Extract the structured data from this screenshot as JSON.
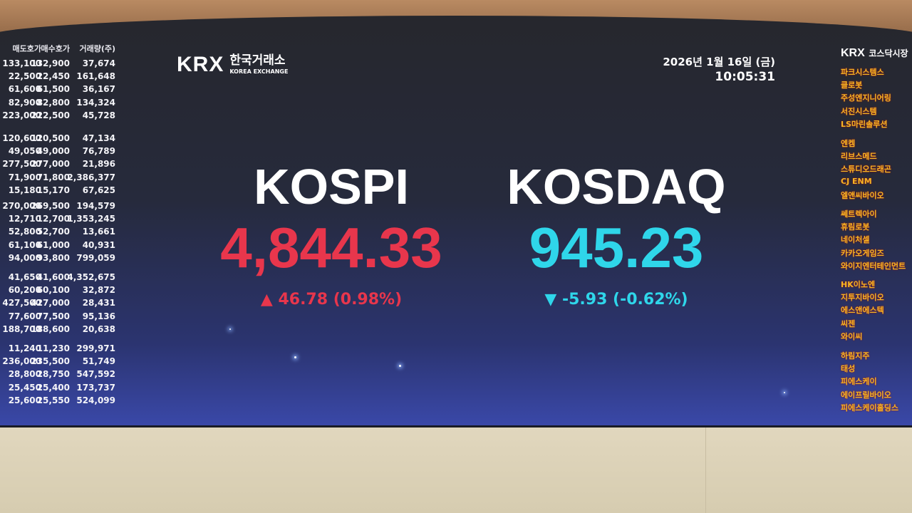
{
  "left_table": {
    "headers": [
      "매도호가",
      "매수호가",
      "거래량(주)"
    ],
    "groups": [
      [
        [
          "133,100",
          "132,900",
          "37,674"
        ],
        [
          "22,500",
          "22,450",
          "161,648"
        ],
        [
          "61,600",
          "61,500",
          "36,167"
        ],
        [
          "82,900",
          "82,800",
          "134,324"
        ],
        [
          "223,000",
          "222,500",
          "45,728"
        ]
      ],
      [
        [
          "120,600",
          "120,500",
          "47,134"
        ],
        [
          "49,050",
          "49,000",
          "76,789"
        ],
        [
          "277,500",
          "277,000",
          "21,896"
        ],
        [
          "71,900",
          "71,800",
          "2,386,377"
        ],
        [
          "15,180",
          "15,170",
          "67,625"
        ]
      ],
      [
        [
          "270,000",
          "269,500",
          "194,579"
        ],
        [
          "12,710",
          "12,700",
          "1,353,245"
        ],
        [
          "52,800",
          "52,700",
          "13,661"
        ],
        [
          "61,100",
          "61,000",
          "40,931"
        ],
        [
          "94,000",
          "93,800",
          "799,059"
        ]
      ],
      [
        [
          "41,650",
          "41,600",
          "4,352,675"
        ],
        [
          "60,200",
          "60,100",
          "32,872"
        ],
        [
          "427,500",
          "427,000",
          "28,431"
        ],
        [
          "77,600",
          "77,500",
          "95,136"
        ],
        [
          "188,700",
          "188,600",
          "20,638"
        ]
      ],
      [
        [
          "11,240",
          "11,230",
          "299,971"
        ],
        [
          "236,000",
          "235,500",
          "51,749"
        ],
        [
          "28,800",
          "28,750",
          "547,592"
        ],
        [
          "25,450",
          "25,400",
          "173,737"
        ],
        [
          "25,600",
          "25,550",
          "524,099"
        ]
      ]
    ]
  },
  "logo": {
    "brand": "KRX",
    "korean": "한국거래소",
    "english": "KOREA EXCHANGE"
  },
  "datetime": {
    "date": "2026년 1월 16일 (금)",
    "time": "10:05:31"
  },
  "kospi": {
    "name": "KOSPI",
    "value": "4,844.33",
    "arrow": "▲",
    "change": "46.78 (0.98%)",
    "color": "#e8364c"
  },
  "kosdaq": {
    "name": "KOSDAQ",
    "value": "945.23",
    "arrow": "▼",
    "change": "-5.93 (-0.62%)",
    "color": "#2fd6ea"
  },
  "right_panel": {
    "header_brand": "KRX",
    "header_title": "코스닥시장",
    "groups": [
      [
        "파크시스템스",
        "클로봇",
        "주성엔지니어링",
        "서진시스템",
        "LS마린솔루션"
      ],
      [
        "엔켐",
        "리브스메드",
        "스튜디오드래곤",
        "CJ ENM",
        "엘앤씨바이오"
      ],
      [
        "쎄트렉아이",
        "휴림로봇",
        "네이처셀",
        "카카오게임즈",
        "와이지엔터테인먼트"
      ],
      [
        "HK이노엔",
        "지투지바이오",
        "에스앤에스텍",
        "씨젠",
        "와이씨"
      ],
      [
        "하림지주",
        "태성",
        "피에스케이",
        "에이프릴바이오",
        "피에스케이홀딩스"
      ]
    ]
  }
}
